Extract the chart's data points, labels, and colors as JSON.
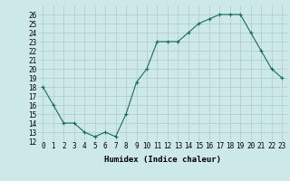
{
  "x": [
    0,
    1,
    2,
    3,
    4,
    5,
    6,
    7,
    8,
    9,
    10,
    11,
    12,
    13,
    14,
    15,
    16,
    17,
    18,
    19,
    20,
    21,
    22,
    23
  ],
  "y": [
    18,
    16,
    14,
    14,
    13,
    12.5,
    13,
    12.5,
    15,
    18.5,
    20,
    23,
    23,
    23,
    24,
    25,
    25.5,
    26,
    26,
    26,
    24,
    22,
    20,
    19
  ],
  "xlim": [
    -0.5,
    23.5
  ],
  "ylim": [
    12,
    27
  ],
  "yticks": [
    12,
    13,
    14,
    15,
    16,
    17,
    18,
    19,
    20,
    21,
    22,
    23,
    24,
    25,
    26
  ],
  "xticks": [
    0,
    1,
    2,
    3,
    4,
    5,
    6,
    7,
    8,
    9,
    10,
    11,
    12,
    13,
    14,
    15,
    16,
    17,
    18,
    19,
    20,
    21,
    22,
    23
  ],
  "xlabel": "Humidex (Indice chaleur)",
  "line_color": "#1a6b5a",
  "marker": "+",
  "bg_color": "#cce8e8",
  "grid_color": "#aacccc",
  "tick_fontsize": 5.5,
  "label_fontsize": 6.5
}
